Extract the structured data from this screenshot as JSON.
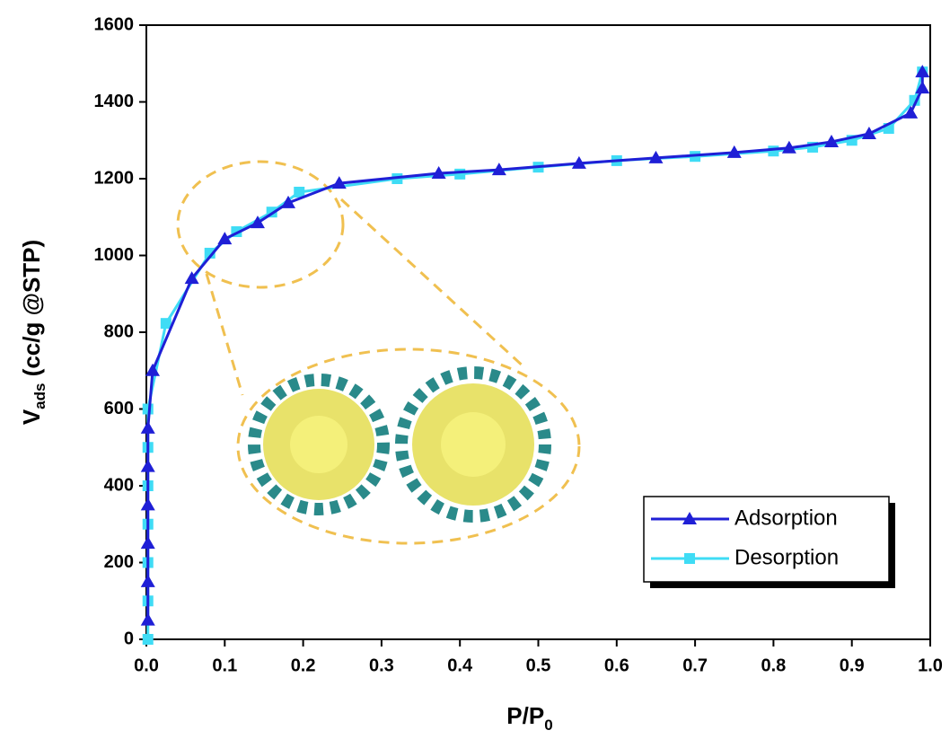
{
  "chart_data": {
    "type": "line",
    "xlabel": {
      "main": "P/P",
      "sub": "0"
    },
    "ylabel": {
      "main": "V",
      "sub": "ads",
      "rest": " (cc/g @STP)"
    },
    "xlim": [
      0,
      1
    ],
    "ylim": [
      0,
      1600
    ],
    "xticks": [
      {
        "value": 0,
        "label": "0.0"
      },
      0.1,
      0.2,
      0.3,
      0.4,
      0.5,
      0.6,
      0.7,
      0.8,
      0.9,
      {
        "value": 1,
        "label": "1.0"
      }
    ],
    "yticks": [
      0,
      200,
      400,
      600,
      800,
      1000,
      1200,
      1400,
      1600
    ],
    "legend": "lower right",
    "series": [
      {
        "name": "Adsorption",
        "color": "#1f1fd6",
        "marker": "triangle",
        "x": [
          0.002,
          0.002,
          0.002,
          0.002,
          0.002,
          0.002,
          0.008,
          0.058,
          0.1,
          0.142,
          0.181,
          0.246,
          0.373,
          0.45,
          0.552,
          0.65,
          0.75,
          0.82,
          0.874,
          0.922,
          0.975,
          0.99,
          0.99
        ],
        "values": [
          50,
          150,
          250,
          350,
          450,
          550,
          700,
          940,
          1043,
          1085,
          1137,
          1188,
          1214,
          1223,
          1240,
          1254,
          1268,
          1280,
          1296,
          1317,
          1371,
          1436,
          1478
        ]
      },
      {
        "name": "Desorption",
        "color": "#3fdcf5",
        "marker": "square",
        "x": [
          0.99,
          0.98,
          0.947,
          0.9,
          0.85,
          0.8,
          0.7,
          0.6,
          0.5,
          0.4,
          0.32,
          0.195,
          0.16,
          0.115,
          0.081,
          0.025,
          0.002,
          0.002,
          0.002,
          0.002,
          0.002,
          0.002,
          0.002
        ],
        "values": [
          1478,
          1404,
          1331,
          1300,
          1282,
          1272,
          1258,
          1247,
          1230,
          1212,
          1200,
          1165,
          1113,
          1062,
          1006,
          823,
          600,
          500,
          400,
          300,
          200,
          100,
          0
        ]
      }
    ]
  }
}
